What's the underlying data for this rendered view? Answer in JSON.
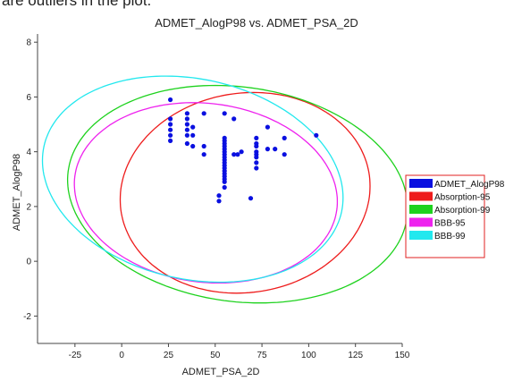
{
  "caption_fragment": "are outliers in the plot.",
  "chart_data": {
    "type": "scatter",
    "title": "ADMET_AlogP98 vs. ADMET_PSA_2D",
    "xlabel": "ADMET_PSA_2D",
    "ylabel": "ADMET_AlogP98",
    "xlim": [
      -45,
      150
    ],
    "ylim": [
      -3,
      8.3
    ],
    "xticks": [
      -25,
      0,
      25,
      50,
      75,
      100,
      125,
      150
    ],
    "yticks": [
      -2,
      0,
      2,
      4,
      6,
      8
    ],
    "grid": false,
    "legend_position": "right",
    "colors": {
      "points": "#0a10e0",
      "Absorption-95": "#ee1c1c",
      "Absorption-99": "#1ed21e",
      "BBB-95": "#ee22ee",
      "BBB-99": "#22e8ee"
    },
    "series": [
      {
        "name": "ADMET_AlogP98",
        "points": [
          [
            26,
            5.9
          ],
          [
            26,
            5.2
          ],
          [
            26,
            5.0
          ],
          [
            26,
            4.8
          ],
          [
            26,
            4.6
          ],
          [
            26,
            4.4
          ],
          [
            35,
            5.4
          ],
          [
            35,
            5.2
          ],
          [
            35,
            5.0
          ],
          [
            35,
            4.8
          ],
          [
            35,
            4.6
          ],
          [
            35,
            4.3
          ],
          [
            44,
            5.4
          ],
          [
            44,
            4.2
          ],
          [
            44,
            3.9
          ],
          [
            38,
            4.9
          ],
          [
            38,
            4.6
          ],
          [
            38,
            4.2
          ],
          [
            52,
            2.4
          ],
          [
            52,
            2.2
          ],
          [
            55,
            5.4
          ],
          [
            55,
            4.5
          ],
          [
            55,
            4.4
          ],
          [
            55,
            4.3
          ],
          [
            55,
            4.2
          ],
          [
            55,
            4.1
          ],
          [
            55,
            4.0
          ],
          [
            55,
            3.9
          ],
          [
            55,
            3.8
          ],
          [
            55,
            3.7
          ],
          [
            55,
            3.6
          ],
          [
            55,
            3.5
          ],
          [
            55,
            3.4
          ],
          [
            55,
            3.3
          ],
          [
            55,
            3.2
          ],
          [
            55,
            3.1
          ],
          [
            55,
            3.0
          ],
          [
            55,
            2.9
          ],
          [
            55,
            2.7
          ],
          [
            60,
            5.2
          ],
          [
            60,
            3.9
          ],
          [
            62,
            3.9
          ],
          [
            64,
            4.0
          ],
          [
            69,
            2.3
          ],
          [
            72,
            4.5
          ],
          [
            72,
            4.3
          ],
          [
            72,
            4.2
          ],
          [
            72,
            4.0
          ],
          [
            72,
            3.9
          ],
          [
            72,
            3.8
          ],
          [
            72,
            3.6
          ],
          [
            72,
            3.4
          ],
          [
            78,
            4.9
          ],
          [
            78,
            4.1
          ],
          [
            82,
            4.1
          ],
          [
            87,
            4.5
          ],
          [
            87,
            3.9
          ],
          [
            104,
            4.6
          ]
        ]
      },
      {
        "name": "Absorption-95",
        "ellipse": {
          "center": [
            66,
            2.5
          ],
          "semi_axes": [
            66,
            3.7
          ],
          "rotation_deg": -18
        }
      },
      {
        "name": "Absorption-99",
        "ellipse": {
          "center": [
            62,
            2.45
          ],
          "semi_axes": [
            93,
            3.85
          ],
          "rotation_deg": -22
        }
      },
      {
        "name": "BBB-95",
        "ellipse": {
          "center": [
            45,
            2.5
          ],
          "semi_axes": [
            72,
            3.2
          ],
          "rotation_deg": -28
        }
      },
      {
        "name": "BBB-99",
        "ellipse": {
          "center": [
            38,
            3.0
          ],
          "semi_axes": [
            85,
            3.5
          ],
          "rotation_deg": -35
        }
      }
    ],
    "legend": [
      "ADMET_AlogP98",
      "Absorption-95",
      "Absorption-99",
      "BBB-95",
      "BBB-99"
    ]
  }
}
